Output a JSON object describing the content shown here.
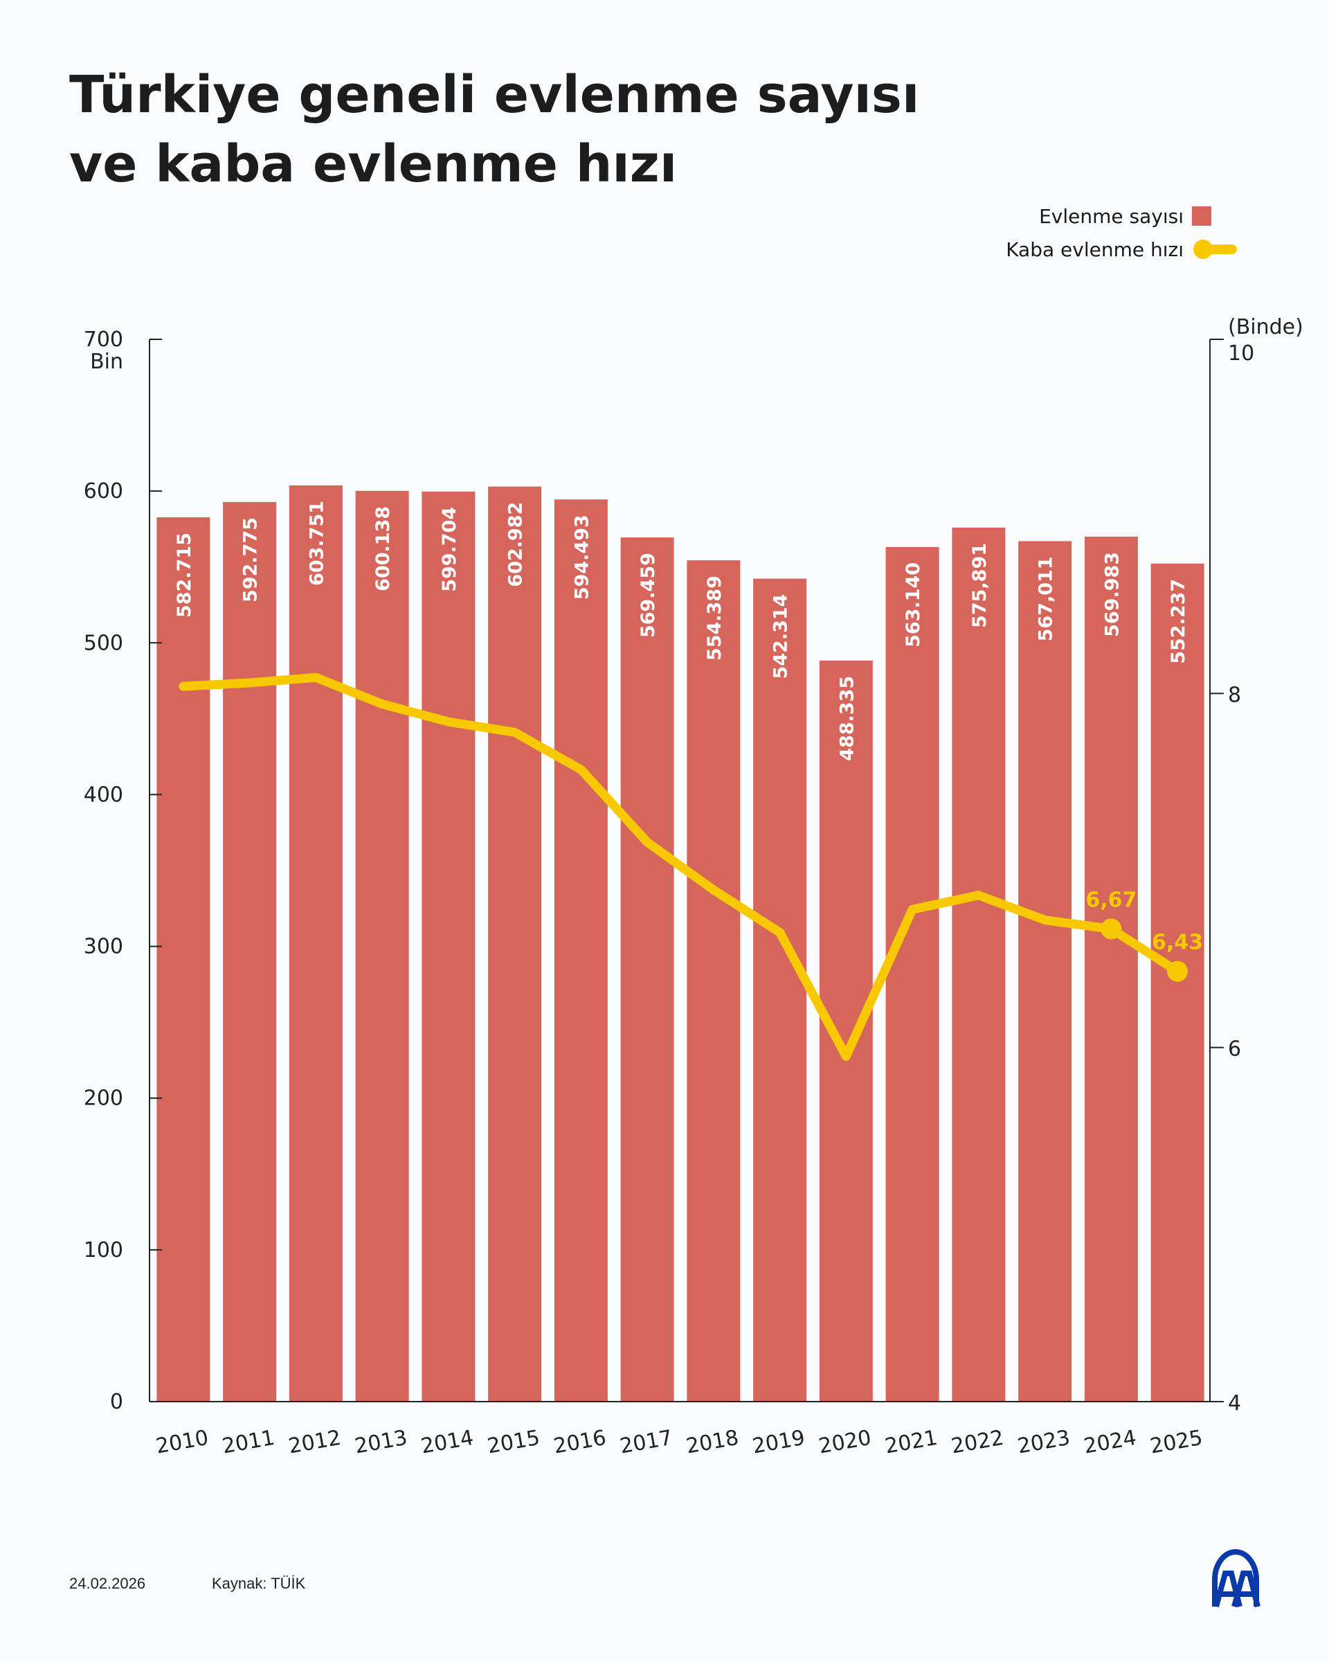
{
  "title_lines": [
    "Türkiye geneli evlenme sayısı",
    "ve kaba evlenme hızı"
  ],
  "legend": [
    {
      "label": "Evlenme sayısı",
      "type": "bar",
      "color": "#d6655c"
    },
    {
      "label": "Kaba evlenme hızı",
      "type": "line",
      "color": "#f8c800"
    }
  ],
  "chart_data": {
    "type": "bar+line",
    "categories": [
      "2010",
      "2011",
      "2012",
      "2013",
      "2014",
      "2015",
      "2016",
      "2017",
      "2018",
      "2019",
      "2020",
      "2021",
      "2022",
      "2023",
      "2024",
      "2025"
    ],
    "series": [
      {
        "name": "Evlenme sayısı",
        "type": "bar",
        "axis": "left",
        "color": "#d6655c",
        "values": [
          582715,
          592775,
          603751,
          600138,
          599704,
          602982,
          594493,
          569459,
          554389,
          542314,
          488335,
          563140,
          575891,
          567011,
          569983,
          552237
        ],
        "data_labels": [
          "582.715",
          "592.775",
          "603.751",
          "600.138",
          "599.704",
          "602.982",
          "594.493",
          "569.459",
          "554.389",
          "542.314",
          "488.335",
          "563.140",
          "575,891",
          "567,011",
          "569.983",
          "552.237"
        ]
      },
      {
        "name": "Kaba evlenme hızı",
        "type": "line",
        "axis": "right",
        "color": "#f8c800",
        "values": [
          8.04,
          8.06,
          8.09,
          7.94,
          7.84,
          7.78,
          7.57,
          7.16,
          6.89,
          6.65,
          5.95,
          6.78,
          6.86,
          6.72,
          6.67,
          6.43
        ],
        "point_labels": {
          "14": "6,67",
          "15": "6,43"
        }
      }
    ],
    "left_axis": {
      "label": "Bin",
      "ylim": [
        0,
        700
      ],
      "ticks": [
        "0",
        "100",
        "200",
        "300",
        "400",
        "500",
        "600",
        "700"
      ]
    },
    "right_axis": {
      "label": "(Binde)",
      "ylim": [
        4,
        10
      ],
      "ticks": [
        "4",
        "6",
        "8",
        "10"
      ]
    },
    "grid": false,
    "legend_position": "top-right"
  },
  "footer": {
    "date": "24.02.2026",
    "source": "Kaynak: TÜİK",
    "logo_text": "AA",
    "logo_color": "#0a3aa8"
  }
}
